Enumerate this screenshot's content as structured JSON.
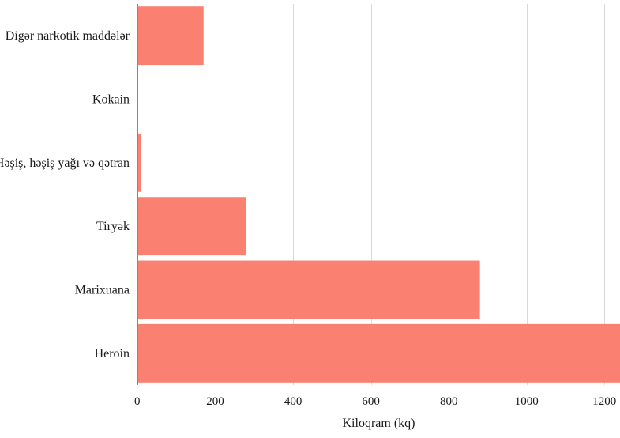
{
  "chart_data": {
    "type": "bar",
    "orientation": "horizontal",
    "categories": [
      "Digər narkotik maddələr",
      "Kokain",
      "Həşiş, həşiş yağı və qətran",
      "Tiryək",
      "Marixuana",
      "Heroin"
    ],
    "values": [
      170,
      0.5,
      9,
      280,
      880,
      1240
    ],
    "xlabel": "Kiloqram (kq)",
    "ylabel": "",
    "xlim": [
      0,
      1240
    ],
    "xticks": [
      0,
      200,
      400,
      600,
      800,
      1000,
      1200
    ],
    "grid": "vertical",
    "bar_color": "#fa8072",
    "grid_color": "#d9d9d9",
    "axis_color": "#888888"
  }
}
